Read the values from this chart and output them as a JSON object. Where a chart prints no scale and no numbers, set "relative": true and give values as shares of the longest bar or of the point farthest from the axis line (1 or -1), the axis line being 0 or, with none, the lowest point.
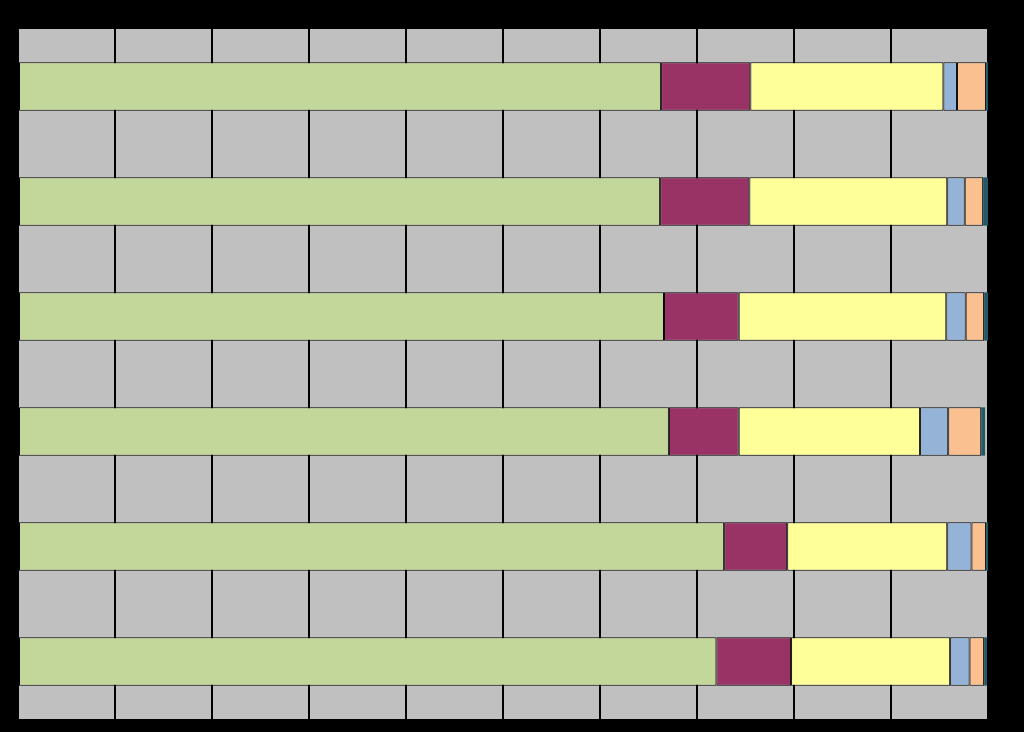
{
  "chart_data": {
    "type": "bar",
    "orientation": "horizontal",
    "stacked": true,
    "relative": true,
    "grid": "x",
    "categories": [
      null,
      null,
      null,
      null,
      null,
      null
    ],
    "series": [
      {
        "color": "#c4d79b",
        "values": [
          0.663,
          0.662,
          0.666,
          0.671,
          0.728,
          0.72
        ]
      },
      {
        "color": "#993366",
        "values": [
          0.092,
          0.092,
          0.077,
          0.072,
          0.065,
          0.077
        ]
      },
      {
        "color": "#ffff99",
        "values": [
          0.199,
          0.204,
          0.214,
          0.187,
          0.165,
          0.164
        ]
      },
      {
        "color": "#95b3d7",
        "values": [
          0.014,
          0.018,
          0.02,
          0.029,
          0.025,
          0.02
        ]
      },
      {
        "color": "#fac090",
        "values": [
          0.03,
          0.019,
          0.019,
          0.034,
          0.015,
          0.015
        ]
      },
      {
        "color": "#215968",
        "values": [
          0.002,
          0.005,
          0.004,
          0.004,
          0.002,
          0.003
        ]
      }
    ]
  }
}
